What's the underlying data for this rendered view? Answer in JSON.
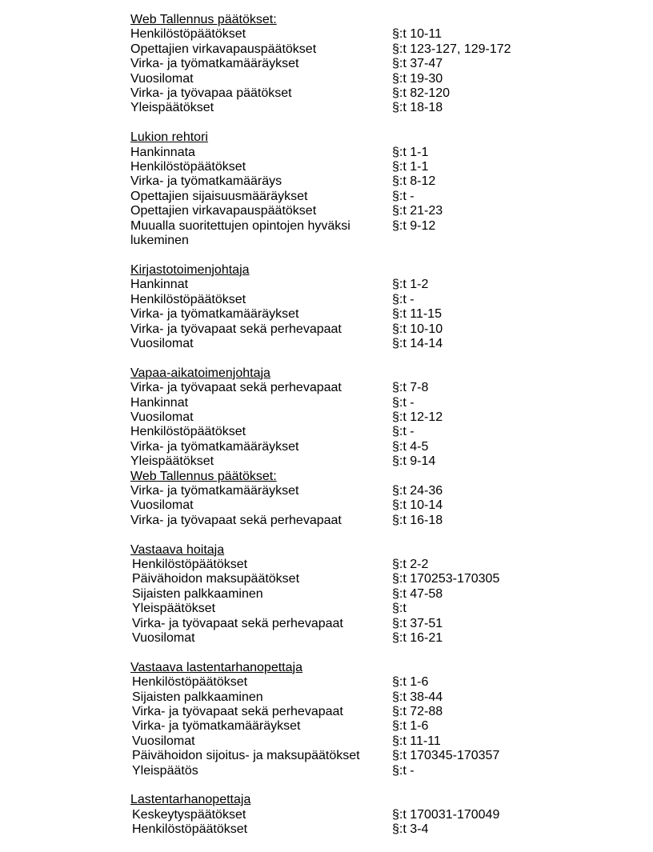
{
  "sections": [
    {
      "title": "Web Tallennus päätökset:",
      "items": [
        [
          "Henkilöstöpäätökset",
          "§:t 10-11"
        ],
        [
          "Opettajien virkavapauspäätökset",
          "§:t 123-127, 129-172"
        ],
        [
          "Virka- ja työmatkamääräykset",
          "§:t 37-47"
        ],
        [
          "Vuosilomat",
          "§:t 19-30"
        ],
        [
          "Virka- ja työvapaa päätökset",
          "§:t 82-120"
        ],
        [
          "Yleispäätökset",
          "§:t 18-18"
        ]
      ]
    },
    {
      "title": "Lukion rehtori",
      "items": [
        [
          "Hankinnata",
          "§:t 1-1"
        ],
        [
          "Henkilöstöpäätökset",
          "§:t 1-1"
        ],
        [
          "Virka- ja työmatkamääräys",
          "§:t 8-12"
        ],
        [
          "Opettajien sijaisuusmääräykset",
          "§:t -"
        ],
        [
          "Opettajien virkavapauspäätökset",
          "§:t 21-23"
        ],
        [
          "Muualla suoritettujen opintojen hyväksi\nlukeminen",
          "§:t 9-12"
        ]
      ]
    },
    {
      "title": "Kirjastotoimenjohtaja",
      "items": [
        [
          "Hankinnat",
          "§:t 1-2"
        ],
        [
          "Henkilöstöpäätökset",
          "§:t -"
        ],
        [
          "Virka- ja työmatkamääräykset",
          "§:t 11-15"
        ],
        [
          "Virka- ja työvapaat sekä perhevapaat",
          "§:t 10-10"
        ],
        [
          "Vuosilomat",
          "§:t 14-14"
        ]
      ]
    },
    {
      "title": "Vapaa-aikatoimenjohtaja",
      "items": [
        [
          "Virka- ja työvapaat sekä perhevapaat",
          "§:t 7-8"
        ],
        [
          "Hankinnat",
          "§:t -"
        ],
        [
          "Vuosilomat",
          "§:t 12-12"
        ],
        [
          "Henkilöstöpäätökset",
          "§:t -"
        ],
        [
          "Virka- ja työmatkamääräykset",
          "§:t 4-5"
        ],
        [
          "Yleispäätökset",
          "§:t 9-14"
        ]
      ],
      "noBlank": true
    },
    {
      "title": "Web Tallennus päätökset:",
      "items": [
        [
          "Virka- ja työmatkamääräykset",
          "§:t 24-36"
        ],
        [
          "Vuosilomat",
          "§:t 10-14"
        ],
        [
          "Virka- ja työvapaat sekä perhevapaat",
          "§:t 16-18"
        ]
      ]
    },
    {
      "title": "Vastaava hoitaja",
      "indent": true,
      "items": [
        [
          "Henkilöstöpäätökset",
          "§:t 2-2"
        ],
        [
          "Päivähoidon maksupäätökset",
          "§:t 170253-170305"
        ],
        [
          "Sijaisten palkkaaminen",
          "§:t 47-58"
        ],
        [
          "Yleispäätökset",
          "§:t"
        ],
        [
          "Virka- ja työvapaat sekä perhevapaat",
          "§:t 37-51"
        ],
        [
          "Vuosilomat",
          "§:t 16-21"
        ]
      ]
    },
    {
      "title": "Vastaava lastentarhanopettaja",
      "indent": true,
      "items": [
        [
          "Henkilöstöpäätökset",
          "§:t 1-6"
        ],
        [
          "Sijaisten palkkaaminen",
          "§:t 38-44"
        ],
        [
          "Virka- ja työvapaat sekä perhevapaat",
          "§:t 72-88"
        ],
        [
          "Virka- ja työmatkamääräykset",
          "§:t 1-6"
        ],
        [
          "Vuosilomat",
          "§:t 11-11"
        ],
        [
          "Päivähoidon sijoitus- ja maksupäätökset",
          "§:t 170345-170357"
        ],
        [
          "Yleispäätös",
          "§:t -"
        ]
      ]
    },
    {
      "title": "Lastentarhanopettaja",
      "indent": true,
      "items": [
        [
          "Keskeytyspäätökset",
          "§:t 170031-170049"
        ],
        [
          "Henkilöstöpäätökset",
          "§:t 3-4"
        ]
      ]
    }
  ]
}
